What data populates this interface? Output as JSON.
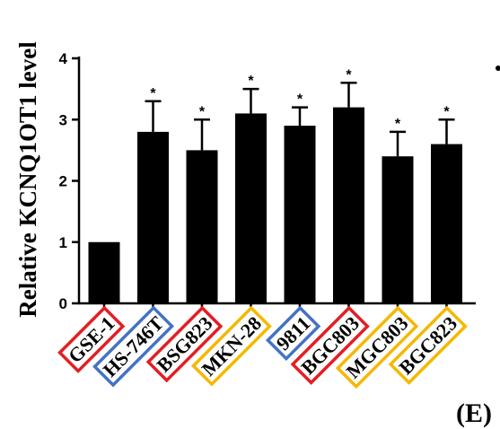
{
  "chart_data": {
    "type": "bar",
    "title": "",
    "xlabel": "",
    "ylabel": "Relative KCNQ1OT1 level",
    "ylim": [
      0,
      4
    ],
    "yticks": [
      0,
      1,
      2,
      3,
      4
    ],
    "categories": [
      "GSE-1",
      "HS-746T",
      "BSG823",
      "MKN-28",
      "9811",
      "BGC803",
      "MGC803",
      "BGC823"
    ],
    "values": [
      1.0,
      2.8,
      2.5,
      3.1,
      2.9,
      3.2,
      2.4,
      2.6
    ],
    "errors": [
      0,
      0.5,
      0.5,
      0.4,
      0.3,
      0.4,
      0.4,
      0.4
    ],
    "annotations": [
      "",
      "*",
      "*",
      "*",
      "*",
      "*",
      "*",
      "*"
    ],
    "label_box_colors": [
      "#e31e24",
      "#4472c4",
      "#e31e24",
      "#f5b800",
      "#4472c4",
      "#e31e24",
      "#f5b800",
      "#f5b800"
    ],
    "bar_color": "#000000",
    "grid": false,
    "legend": "none"
  },
  "panel_label": "(E)"
}
